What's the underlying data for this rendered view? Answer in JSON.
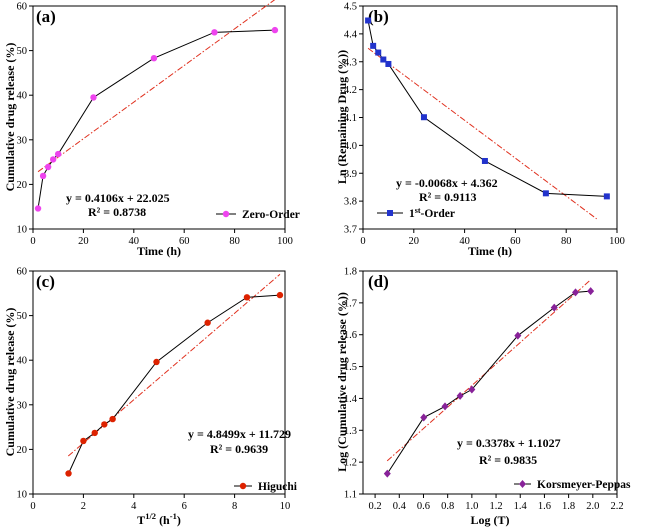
{
  "chart_data": [
    {
      "type": "scatter",
      "panel": "(a)",
      "xlabel": "Time (h)",
      "ylabel": "Cumulative drug release (%)",
      "xlim": [
        0,
        100
      ],
      "ylim": [
        10,
        60
      ],
      "xticks": [
        0,
        20,
        40,
        60,
        80,
        100
      ],
      "yticks": [
        10,
        20,
        30,
        40,
        50,
        60
      ],
      "series": [
        {
          "name": "Zero-Order",
          "color": "#ee44ee",
          "marker": "circle",
          "x": [
            2,
            4,
            6,
            8,
            10,
            24,
            48,
            72,
            96
          ],
          "y": [
            14.6,
            21.9,
            23.9,
            25.6,
            26.8,
            39.5,
            48.3,
            54.1,
            54.6
          ]
        }
      ],
      "fit": {
        "slope": 0.4106,
        "intercept": 22.025,
        "xrange": [
          2,
          96
        ]
      },
      "equation": "y = 0.4106x + 22.025",
      "r2": "R² = 0.8738",
      "legend": "Zero-Order"
    },
    {
      "type": "scatter",
      "panel": "(b)",
      "xlabel": "Time (h)",
      "ylabel": "Ln (Remaining Drug (%))",
      "xlim": [
        0,
        100
      ],
      "ylim": [
        3.7,
        4.5
      ],
      "xticks": [
        0,
        20,
        40,
        60,
        80,
        100
      ],
      "yticks": [
        3.7,
        3.8,
        3.9,
        4.0,
        4.1,
        4.2,
        4.3,
        4.4,
        4.5
      ],
      "ytick_labels": [
        "3.7",
        "3.8",
        "3.9",
        "4.0",
        "4.1",
        "4.2",
        "4.3",
        "4.4",
        "4.5"
      ],
      "series": [
        {
          "name": "1st-Order",
          "color": "#2233cc",
          "marker": "square",
          "x": [
            2,
            4,
            6,
            8,
            10,
            24,
            48,
            72,
            96
          ],
          "y": [
            4.448,
            4.357,
            4.333,
            4.308,
            4.292,
            4.101,
            3.944,
            3.828,
            3.817
          ]
        }
      ],
      "fit": {
        "slope": -0.0068,
        "intercept": 4.362,
        "xrange": [
          2,
          92
        ]
      },
      "equation": "y = -0.0068x + 4.362",
      "r2": "R² = 0.9113",
      "legend_main": "1",
      "legend_sup": "st",
      "legend_rest": "-Order"
    },
    {
      "type": "scatter",
      "panel": "(c)",
      "xlabel_main": "T",
      "xlabel_sup": "1/2",
      "xlabel_unit": " (h",
      "xlabel_unit_sup": "-1",
      "xlabel_end": ")",
      "ylabel": "Cumulative drug release (%)",
      "xlim": [
        0,
        10
      ],
      "ylim": [
        10,
        60
      ],
      "xticks": [
        0,
        2,
        4,
        6,
        8,
        10
      ],
      "yticks": [
        10,
        20,
        30,
        40,
        50,
        60
      ],
      "series": [
        {
          "name": "Higuchi",
          "color": "#dd2200",
          "marker": "circle",
          "x": [
            1.41,
            2.0,
            2.45,
            2.83,
            3.16,
            4.9,
            6.93,
            8.49,
            9.8
          ],
          "y": [
            14.6,
            21.9,
            23.7,
            25.6,
            26.8,
            39.6,
            48.4,
            54.1,
            54.6
          ]
        }
      ],
      "fit": {
        "slope": 4.8499,
        "intercept": 11.729,
        "xrange": [
          1.4,
          9.8
        ]
      },
      "equation": "y = 4.8499x + 11.729",
      "r2": "R² = 0.9639",
      "legend": "Higuchi"
    },
    {
      "type": "scatter",
      "panel": "(d)",
      "xlabel": "Log (T)",
      "ylabel": "Log (Cumulative drug release (%))",
      "xlim": [
        0.1,
        2.2
      ],
      "ylim": [
        1.1,
        1.8
      ],
      "xticks": [
        0.2,
        0.4,
        0.6,
        0.8,
        1.0,
        1.2,
        1.4,
        1.6,
        1.8,
        2.0,
        2.2
      ],
      "xtick_labels": [
        "0.2",
        "0.4",
        "0.6",
        "0.8",
        "1.0",
        "1.2",
        "1.4",
        "1.6",
        "1.8",
        "2.0",
        "2.2"
      ],
      "yticks": [
        1.1,
        1.2,
        1.3,
        1.4,
        1.5,
        1.6,
        1.7,
        1.8
      ],
      "ytick_labels": [
        "1.1",
        "1.2",
        "1.3",
        "1.4",
        "1.5",
        "1.6",
        "1.7",
        "1.8"
      ],
      "series": [
        {
          "name": "Korsmeyer-Peppas",
          "color": "#882299",
          "marker": "diamond",
          "x": [
            0.301,
            0.602,
            0.778,
            0.903,
            1.0,
            1.38,
            1.681,
            1.857,
            1.982
          ],
          "y": [
            1.164,
            1.34,
            1.375,
            1.408,
            1.428,
            1.597,
            1.685,
            1.733,
            1.737
          ]
        }
      ],
      "fit": {
        "slope": 0.3378,
        "intercept": 1.1027,
        "xrange": [
          0.3,
          1.98
        ]
      },
      "equation": "y = 0.3378x + 1.1027",
      "r2": "R² = 0.9835",
      "legend": "Korsmeyer-Peppas"
    }
  ]
}
